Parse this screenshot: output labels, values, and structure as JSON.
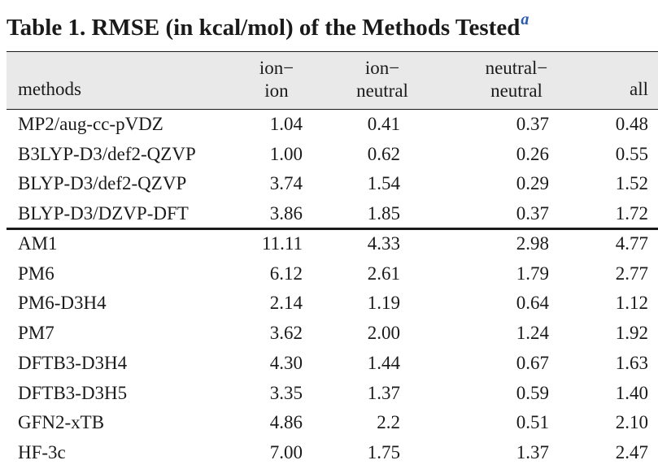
{
  "caption": {
    "text": "Table 1. RMSE (in kcal/mol) of the Methods Tested",
    "footnote_marker": "a"
  },
  "table": {
    "headers": {
      "methods": "methods",
      "ion_ion": [
        "ion−",
        "ion"
      ],
      "ion_neutral": [
        "ion−",
        "neutral"
      ],
      "neutral_neutral": [
        "neutral−",
        "neutral"
      ],
      "all": "all"
    },
    "groups": [
      [
        {
          "method": "MP2/aug-cc-pVDZ",
          "ion_ion": "1.04",
          "ion_neutral": "0.41",
          "neutral_neutral": "0.37",
          "all": "0.48"
        },
        {
          "method": "B3LYP-D3/def2-QZVP",
          "ion_ion": "1.00",
          "ion_neutral": "0.62",
          "neutral_neutral": "0.26",
          "all": "0.55"
        },
        {
          "method": "BLYP-D3/def2-QZVP",
          "ion_ion": "3.74",
          "ion_neutral": "1.54",
          "neutral_neutral": "0.29",
          "all": "1.52"
        },
        {
          "method": "BLYP-D3/DZVP-DFT",
          "ion_ion": "3.86",
          "ion_neutral": "1.85",
          "neutral_neutral": "0.37",
          "all": "1.72"
        }
      ],
      [
        {
          "method": "AM1",
          "ion_ion": "11.11",
          "ion_neutral": "4.33",
          "neutral_neutral": "2.98",
          "all": "4.77"
        },
        {
          "method": "PM6",
          "ion_ion": "6.12",
          "ion_neutral": "2.61",
          "neutral_neutral": "1.79",
          "all": "2.77"
        },
        {
          "method": "PM6-D3H4",
          "ion_ion": "2.14",
          "ion_neutral": "1.19",
          "neutral_neutral": "0.64",
          "all": "1.12"
        },
        {
          "method": "PM7",
          "ion_ion": "3.62",
          "ion_neutral": "2.00",
          "neutral_neutral": "1.24",
          "all": "1.92"
        },
        {
          "method": "DFTB3-D3H4",
          "ion_ion": "4.30",
          "ion_neutral": "1.44",
          "neutral_neutral": "0.67",
          "all": "1.63"
        },
        {
          "method": "DFTB3-D3H5",
          "ion_ion": "3.35",
          "ion_neutral": "1.37",
          "neutral_neutral": "0.59",
          "all": "1.40"
        },
        {
          "method": "GFN2-xTB",
          "ion_ion": "4.86",
          "ion_neutral": "2.2",
          "neutral_neutral": "0.51",
          "all": "2.10"
        },
        {
          "method": "HF-3c",
          "ion_ion": "7.00",
          "ion_neutral": "1.75",
          "neutral_neutral": "1.37",
          "all": "2.47"
        }
      ]
    ]
  },
  "colors": {
    "header_band": "#e9e9e9",
    "footnote_marker": "#2a5db0",
    "text": "#1a1a1a"
  }
}
